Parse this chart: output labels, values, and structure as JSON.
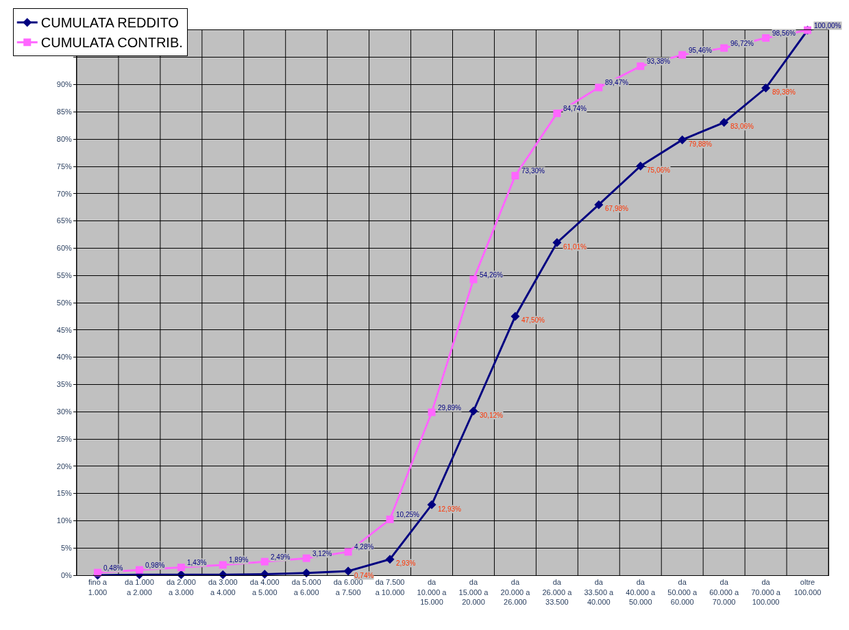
{
  "chart_data": {
    "type": "line",
    "categories": [
      "fino a\n1.000",
      "da 1.000\na 2.000",
      "da 2.000\na 3.000",
      "da 3.000\na 4.000",
      "da 4.000\na 5.000",
      "da 5.000\na 6.000",
      "da 6.000\na 7.500",
      "da 7.500\na 10.000",
      "da\n10.000 a\n15.000",
      "da\n15.000 a\n20.000",
      "da\n20.000 a\n26.000",
      "da\n26.000 a\n33.500",
      "da\n33.500 a\n40.000",
      "da\n40.000 a\n50.000",
      "da\n50.000 a\n60.000",
      "da\n60.000 a\n70.000",
      "da\n70.000 a\n100.000",
      "oltre\n100.000"
    ],
    "series": [
      {
        "name": "CUMULATA REDDITO",
        "color": "#000080",
        "marker": "diamond",
        "values": [
          0.0,
          0.1,
          0.1,
          0.1,
          0.2,
          0.4,
          0.74,
          2.93,
          12.93,
          30.12,
          47.5,
          61.01,
          67.98,
          75.06,
          79.88,
          83.06,
          89.38,
          100.0
        ],
        "value_labels": [
          null,
          null,
          null,
          null,
          null,
          null,
          "0,74%",
          "2,93%",
          "12,93%",
          "30,12%",
          "47,50%",
          "61,01%",
          "67,98%",
          "75,06%",
          "79,88%",
          "83,06%",
          "89,38%",
          null
        ]
      },
      {
        "name": "CUMULATA CONTRIB.",
        "color": "#ff66ff",
        "marker": "square",
        "values": [
          0.48,
          0.98,
          1.43,
          1.89,
          2.49,
          3.12,
          4.28,
          10.25,
          29.89,
          54.26,
          73.3,
          84.74,
          89.47,
          93.38,
          95.46,
          96.72,
          98.56,
          100.0
        ],
        "value_labels": [
          "0,48%",
          "0,98%",
          "1,43%",
          "1,89%",
          "2,49%",
          "3,12%",
          "4,28%",
          "10,25%",
          "29,89%",
          "54,26%",
          "73,30%",
          "84,74%",
          "89,47%",
          "93,38%",
          "95,46%",
          "96,72%",
          "98,56%",
          "100,00%"
        ]
      }
    ],
    "ylim": [
      0,
      100
    ],
    "yticks": [
      {
        "value": 0,
        "label": "0%"
      },
      {
        "value": 5,
        "label": "5%"
      },
      {
        "value": 10,
        "label": "10%"
      },
      {
        "value": 15,
        "label": "15%"
      },
      {
        "value": 20,
        "label": "20%"
      },
      {
        "value": 25,
        "label": "25%"
      },
      {
        "value": 30,
        "label": "30%"
      },
      {
        "value": 35,
        "label": "35%"
      },
      {
        "value": 40,
        "label": "40%"
      },
      {
        "value": 45,
        "label": "45%"
      },
      {
        "value": 50,
        "label": "50%"
      },
      {
        "value": 55,
        "label": "55%"
      },
      {
        "value": 60,
        "label": "60%"
      },
      {
        "value": 65,
        "label": "65%"
      },
      {
        "value": 70,
        "label": "70%"
      },
      {
        "value": 75,
        "label": "75%"
      },
      {
        "value": 80,
        "label": "80%"
      },
      {
        "value": 85,
        "label": "85%"
      },
      {
        "value": 90,
        "label": "90%"
      },
      {
        "value": 95,
        "label": null
      },
      {
        "value": 100,
        "label": null
      }
    ],
    "grid": true,
    "legend": "top left",
    "line_style": "solid"
  }
}
